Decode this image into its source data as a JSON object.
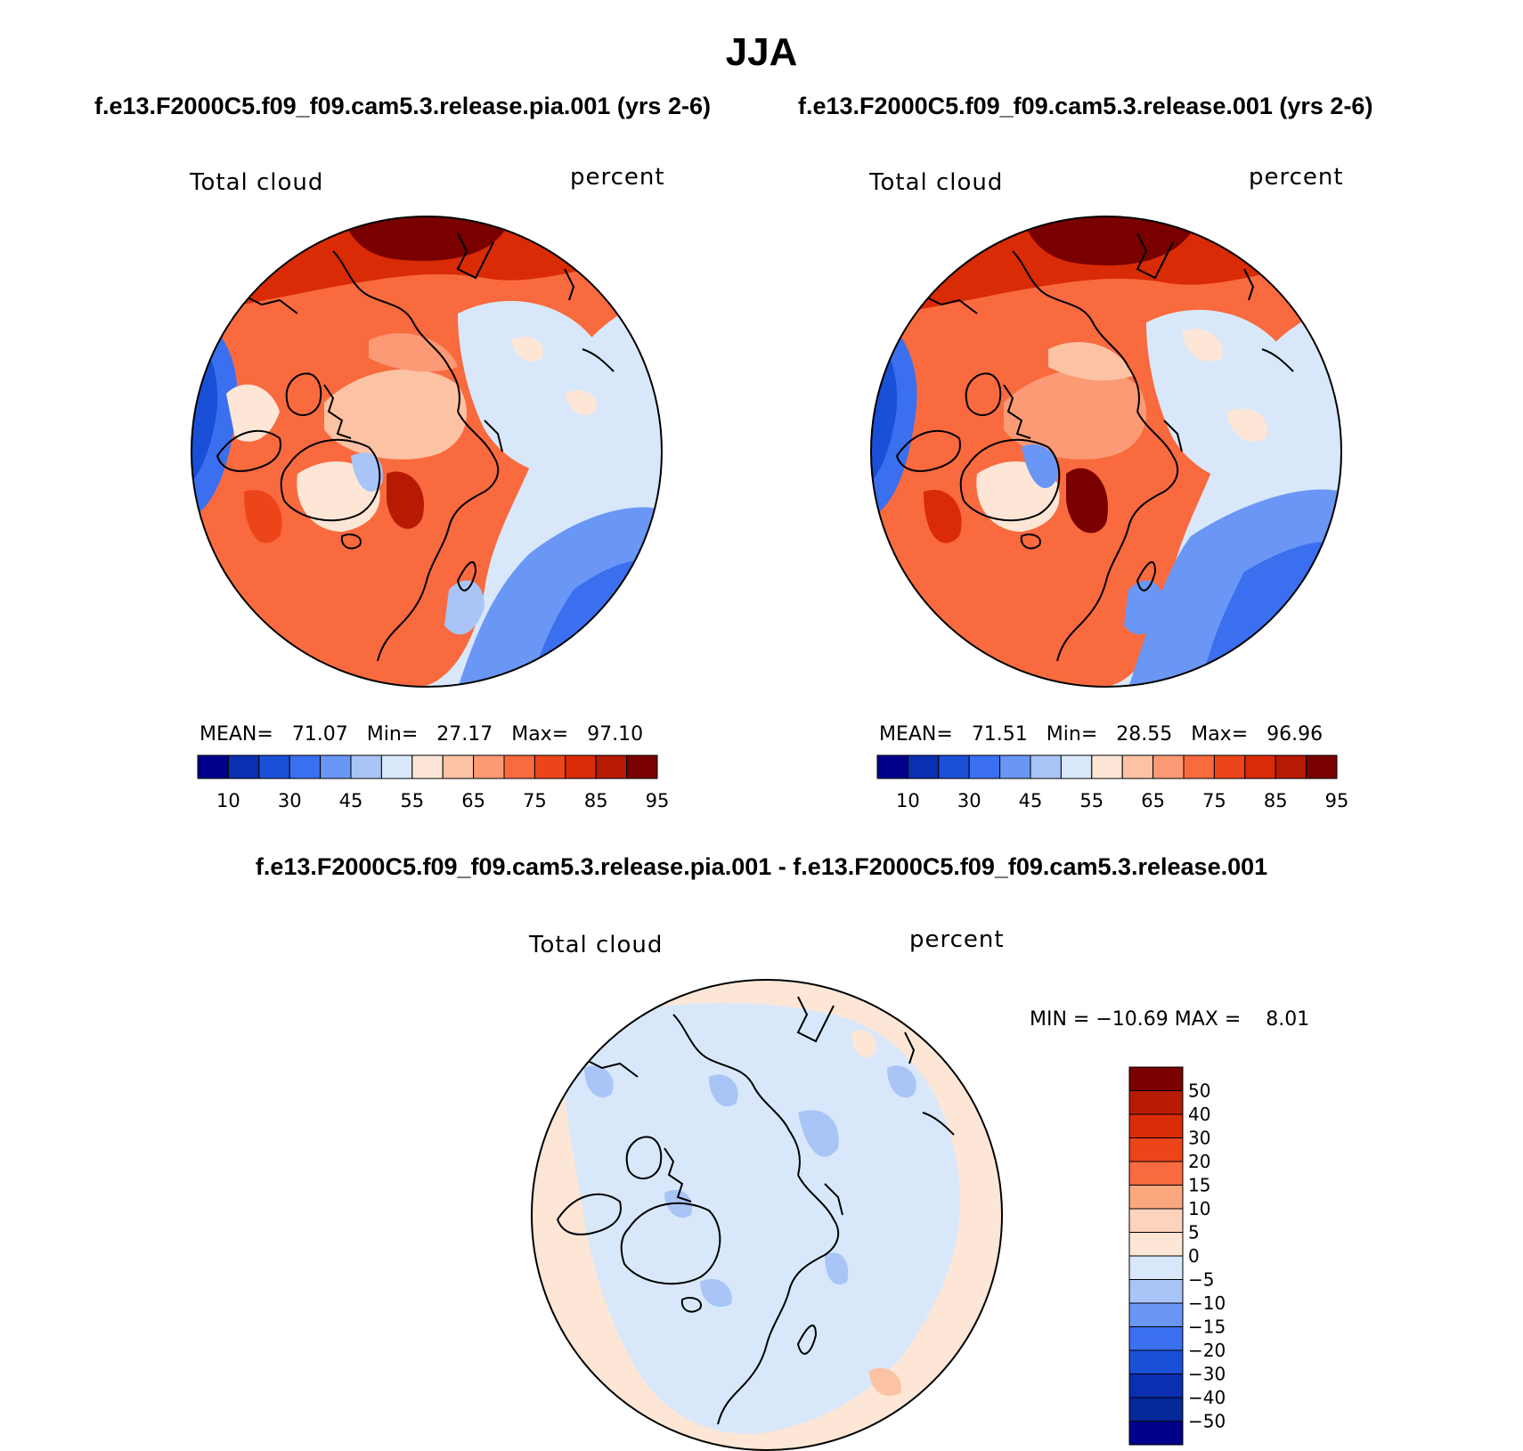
{
  "season": "JJA",
  "panels": [
    {
      "id": "case1",
      "case_title": "f.e13.F2000C5.f09_f09.cam5.3.release.pia.001 (yrs 2-6)",
      "variable": "Total cloud",
      "units": "percent",
      "stats": {
        "mean_label": "MEAN=",
        "mean": "71.07",
        "min_label": "Min=",
        "min": "27.17",
        "max_label": "Max=",
        "max": "97.10"
      }
    },
    {
      "id": "case2",
      "case_title": "f.e13.F2000C5.f09_f09.cam5.3.release.001 (yrs 2-6)",
      "variable": "Total cloud",
      "units": "percent",
      "stats": {
        "mean_label": "MEAN=",
        "mean": "71.51",
        "min_label": "Min=",
        "min": "28.55",
        "max_label": "Max=",
        "max": "96.96"
      }
    },
    {
      "id": "diff",
      "case_title": "f.e13.F2000C5.f09_f09.cam5.3.release.pia.001 - f.e13.F2000C5.f09_f09.cam5.3.release.001",
      "variable": "Total cloud",
      "units": "percent",
      "stats_text": "MIN = −10.69 MAX =    8.01"
    }
  ],
  "colorbar_abs": {
    "colors": [
      "#00008b",
      "#0a2fb0",
      "#1a4fd8",
      "#3a6ff0",
      "#6a96f5",
      "#a9c4f7",
      "#d8e8fa",
      "#fde6d6",
      "#fcc2a4",
      "#fb9a74",
      "#f96a3e",
      "#ec4519",
      "#d82b06",
      "#b71a02",
      "#7a0000"
    ],
    "tick_labels": [
      "10",
      "30",
      "45",
      "55",
      "65",
      "75",
      "85",
      "95"
    ]
  },
  "colorbar_diff": {
    "colors": [
      "#7a0000",
      "#b71a02",
      "#d82b06",
      "#ec4519",
      "#f96a3e",
      "#fba87f",
      "#fdd3bd",
      "#fde6d6",
      "#d8e8fa",
      "#a9c4f7",
      "#6a96f5",
      "#3a6ff0",
      "#1a4fd8",
      "#0a2fb0",
      "#052898",
      "#00008b"
    ],
    "tick_labels": [
      "50",
      "40",
      "30",
      "20",
      "15",
      "10",
      "5",
      "0",
      "−5",
      "−10",
      "−15",
      "−20",
      "−30",
      "−40",
      "−50"
    ]
  }
}
